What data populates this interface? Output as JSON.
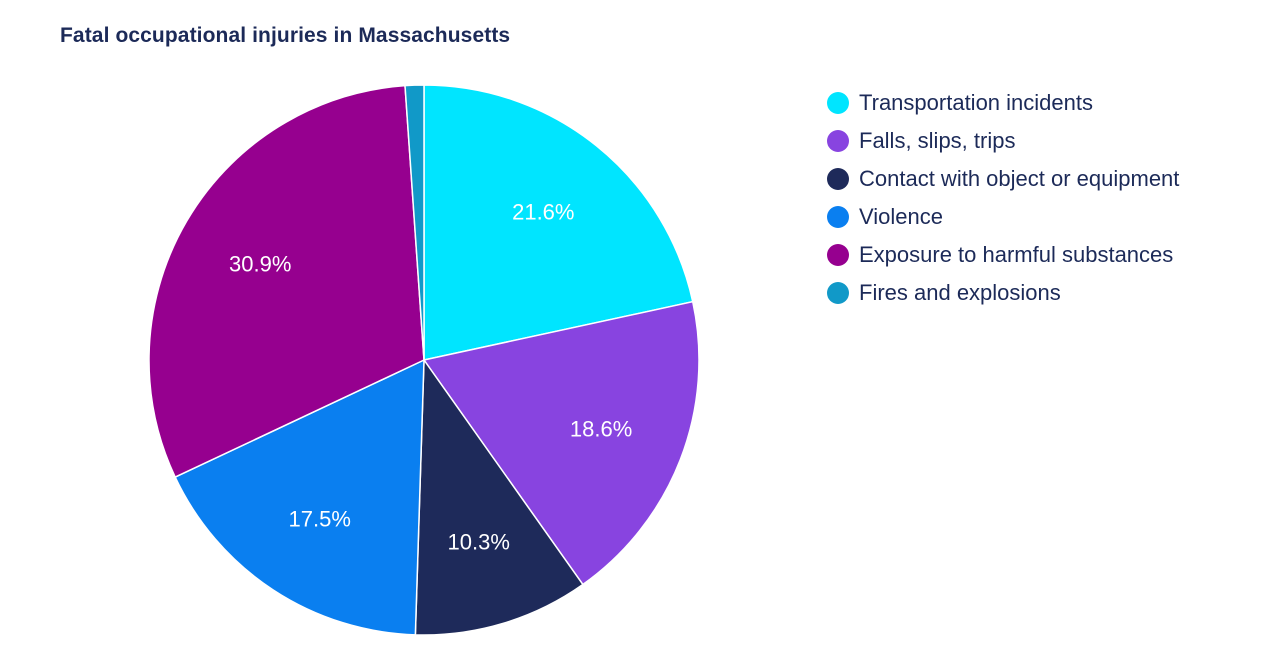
{
  "title": "Fatal occupational injuries in Massachusetts",
  "chart_data": {
    "type": "pie",
    "title": "Fatal occupational injuries in Massachusetts",
    "legend_position": "right",
    "slices": [
      {
        "label": "Transportation incidents",
        "value": 21.6,
        "display": "21.6%",
        "color": "#00e5ff"
      },
      {
        "label": "Falls, slips, trips",
        "value": 18.6,
        "display": "18.6%",
        "color": "#8844e0"
      },
      {
        "label": "Contact with object or equipment",
        "value": 10.3,
        "display": "10.3%",
        "color": "#1e2a5a"
      },
      {
        "label": "Violence",
        "value": 17.5,
        "display": "17.5%",
        "color": "#0a7ff0"
      },
      {
        "label": "Exposure to harmful substances",
        "value": 30.9,
        "display": "30.9%",
        "color": "#96008f"
      },
      {
        "label": "Fires and explosions",
        "value": 1.1,
        "display": "",
        "color": "#1199c8"
      }
    ]
  }
}
